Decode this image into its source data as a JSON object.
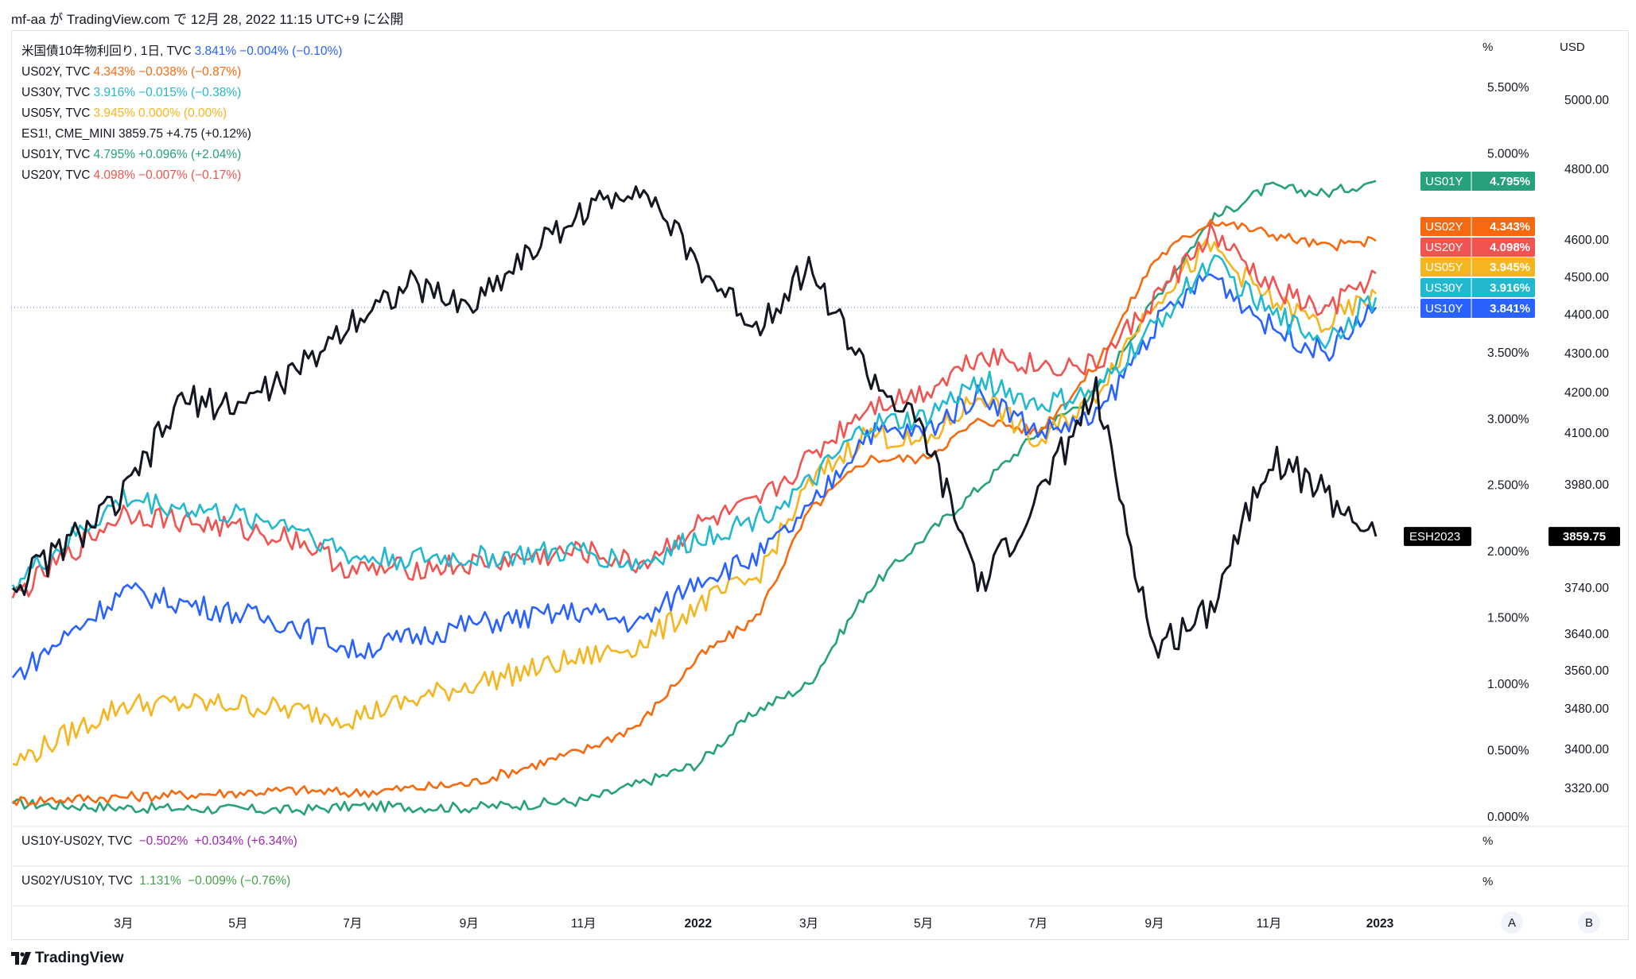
{
  "header": {
    "text": "mf-aa が TradingView.com で 12月 28, 2022 11:15 UTC+9 に公開"
  },
  "legend": [
    {
      "name": "米国債10年物利回り, 1日, TVC",
      "value": "3.841%",
      "change": "−0.004% (−0.10%)",
      "color": "#2962ff"
    },
    {
      "name": "US02Y, TVC",
      "value": "4.343%",
      "change": "−0.038% (−0.87%)",
      "color": "#f7690f"
    },
    {
      "name": "US30Y, TVC",
      "value": "3.916%",
      "change": "−0.015% (−0.38%)",
      "color": "#22b8cf"
    },
    {
      "name": "US05Y, TVC",
      "value": "3.945%",
      "change": "0.000% (0.00%)",
      "color": "#f5b51e"
    },
    {
      "name": "ES1!, CME_MINI",
      "value": "3859.75",
      "change": "+4.75 (+0.12%)",
      "color": "#131722"
    },
    {
      "name": "US01Y, TVC",
      "value": "4.795%",
      "change": "+0.096% (+2.04%)",
      "color": "#26a17b"
    },
    {
      "name": "US20Y, TVC",
      "value": "4.098%",
      "change": "−0.007% (−0.17%)",
      "color": "#f05350"
    }
  ],
  "sub_panes": [
    {
      "name": "US10Y-US02Y, TVC",
      "value": "−0.502%",
      "change": "+0.034% (+6.34%)",
      "color": "#9c27b0",
      "unit": "%"
    },
    {
      "name": "US02Y/US10Y, TVC",
      "value": "1.131%",
      "change": "−0.009% (−0.76%)",
      "color": "#43a047",
      "unit": "%"
    }
  ],
  "axes": {
    "pct_unit": "%",
    "usd_unit": "USD",
    "pct_ticks": [
      {
        "v": 5.5,
        "label": "5.500%"
      },
      {
        "v": 5.0,
        "label": "5.000%"
      },
      {
        "v": 3.5,
        "label": "3.500%"
      },
      {
        "v": 3.0,
        "label": "3.000%"
      },
      {
        "v": 2.5,
        "label": "2.500%"
      },
      {
        "v": 2.0,
        "label": "2.000%"
      },
      {
        "v": 1.5,
        "label": "1.500%"
      },
      {
        "v": 1.0,
        "label": "1.000%"
      },
      {
        "v": 0.5,
        "label": "0.500%"
      },
      {
        "v": 0.0,
        "label": "0.000%"
      }
    ],
    "usd_ticks": [
      "5000.00",
      "4800.00",
      "4600.00",
      "4500.00",
      "4400.00",
      "4300.00",
      "4200.00",
      "4100.00",
      "3980.00",
      "3740.00",
      "3640.00",
      "3560.00",
      "3480.00",
      "3400.00",
      "3320.00"
    ],
    "x_ticks": [
      {
        "label": "3月",
        "bold": false
      },
      {
        "label": "5月",
        "bold": false
      },
      {
        "label": "7月",
        "bold": false
      },
      {
        "label": "9月",
        "bold": false
      },
      {
        "label": "11月",
        "bold": false
      },
      {
        "label": "2022",
        "bold": true
      },
      {
        "label": "3月",
        "bold": false
      },
      {
        "label": "5月",
        "bold": false
      },
      {
        "label": "7月",
        "bold": false
      },
      {
        "label": "9月",
        "bold": false
      },
      {
        "label": "11月",
        "bold": false
      },
      {
        "label": "2023",
        "bold": true
      }
    ]
  },
  "price_tags": [
    {
      "name": "US01Y",
      "value": "4.795%",
      "color": "#26a17b"
    },
    {
      "name": "US02Y",
      "value": "4.343%",
      "color": "#f7690f"
    },
    {
      "name": "US20Y",
      "value": "4.098%",
      "color": "#f05350"
    },
    {
      "name": "US05Y",
      "value": "3.945%",
      "color": "#f5b51e"
    },
    {
      "name": "US30Y",
      "value": "3.916%",
      "color": "#22b8cf"
    },
    {
      "name": "US10Y",
      "value": "3.841%",
      "color": "#2962ff"
    }
  ],
  "es_tag": {
    "name": "ESH2023",
    "value": "3859.75"
  },
  "buttons": {
    "a": "A",
    "b": "B"
  },
  "footer": {
    "brand": "TradingView"
  },
  "chart_data": {
    "type": "line",
    "title": "",
    "x_range": [
      "2021-01",
      "2022-12-28"
    ],
    "y_axis_left_unit": "%",
    "y_axis_right_unit": "USD",
    "series": [
      {
        "name": "US01Y",
        "color": "#26a17b",
        "unit": "%",
        "points": [
          [
            "2021-01",
            0.1
          ],
          [
            "2021-03",
            0.07
          ],
          [
            "2021-06",
            0.05
          ],
          [
            "2021-07",
            0.08
          ],
          [
            "2021-09",
            0.07
          ],
          [
            "2021-11",
            0.12
          ],
          [
            "2021-12",
            0.25
          ],
          [
            "2022-01",
            0.4
          ],
          [
            "2022-02",
            0.8
          ],
          [
            "2022-03",
            1.0
          ],
          [
            "2022-04",
            1.7
          ],
          [
            "2022-05",
            2.1
          ],
          [
            "2022-06",
            2.5
          ],
          [
            "2022-07",
            2.9
          ],
          [
            "2022-08",
            3.2
          ],
          [
            "2022-09",
            3.9
          ],
          [
            "2022-10",
            4.5
          ],
          [
            "2022-11",
            4.75
          ],
          [
            "2022-12",
            4.7
          ],
          [
            "2022-12-28",
            4.795
          ]
        ]
      },
      {
        "name": "US02Y",
        "color": "#f7690f",
        "unit": "%",
        "points": [
          [
            "2021-01",
            0.12
          ],
          [
            "2021-03",
            0.15
          ],
          [
            "2021-06",
            0.2
          ],
          [
            "2021-07",
            0.18
          ],
          [
            "2021-09",
            0.25
          ],
          [
            "2021-11",
            0.5
          ],
          [
            "2021-12",
            0.7
          ],
          [
            "2022-01",
            1.2
          ],
          [
            "2022-02",
            1.5
          ],
          [
            "2022-03",
            2.3
          ],
          [
            "2022-04",
            2.7
          ],
          [
            "2022-05",
            2.7
          ],
          [
            "2022-06",
            3.0
          ],
          [
            "2022-07",
            2.9
          ],
          [
            "2022-08",
            3.4
          ],
          [
            "2022-09",
            4.2
          ],
          [
            "2022-10",
            4.5
          ],
          [
            "2022-11",
            4.4
          ],
          [
            "2022-12",
            4.3
          ],
          [
            "2022-12-28",
            4.343
          ]
        ]
      },
      {
        "name": "US05Y",
        "color": "#f5b51e",
        "unit": "%",
        "points": [
          [
            "2021-01",
            0.4
          ],
          [
            "2021-03",
            0.85
          ],
          [
            "2021-05",
            0.85
          ],
          [
            "2021-06",
            0.8
          ],
          [
            "2021-07",
            0.75
          ],
          [
            "2021-09",
            1.0
          ],
          [
            "2021-11",
            1.2
          ],
          [
            "2021-12",
            1.3
          ],
          [
            "2022-01",
            1.6
          ],
          [
            "2022-02",
            1.8
          ],
          [
            "2022-03",
            2.5
          ],
          [
            "2022-04",
            2.9
          ],
          [
            "2022-05",
            2.8
          ],
          [
            "2022-06",
            3.2
          ],
          [
            "2022-07",
            2.8
          ],
          [
            "2022-08",
            3.2
          ],
          [
            "2022-09",
            3.9
          ],
          [
            "2022-10",
            4.3
          ],
          [
            "2022-11",
            3.9
          ],
          [
            "2022-12",
            3.7
          ],
          [
            "2022-12-28",
            3.945
          ]
        ]
      },
      {
        "name": "US10Y",
        "color": "#2962ff",
        "unit": "%",
        "points": [
          [
            "2021-01",
            1.05
          ],
          [
            "2021-03",
            1.7
          ],
          [
            "2021-06",
            1.45
          ],
          [
            "2021-07",
            1.25
          ],
          [
            "2021-09",
            1.45
          ],
          [
            "2021-11",
            1.55
          ],
          [
            "2021-12",
            1.45
          ],
          [
            "2022-01",
            1.8
          ],
          [
            "2022-02",
            1.95
          ],
          [
            "2022-03",
            2.3
          ],
          [
            "2022-04",
            2.9
          ],
          [
            "2022-05",
            2.9
          ],
          [
            "2022-06",
            3.2
          ],
          [
            "2022-07",
            2.9
          ],
          [
            "2022-08",
            3.0
          ],
          [
            "2022-09",
            3.7
          ],
          [
            "2022-10",
            4.1
          ],
          [
            "2022-11",
            3.7
          ],
          [
            "2022-12",
            3.5
          ],
          [
            "2022-12-28",
            3.841
          ]
        ]
      },
      {
        "name": "US20Y",
        "color": "#f05350",
        "unit": "%",
        "points": [
          [
            "2021-01",
            1.65
          ],
          [
            "2021-03",
            2.3
          ],
          [
            "2021-06",
            2.1
          ],
          [
            "2021-07",
            1.85
          ],
          [
            "2021-09",
            1.9
          ],
          [
            "2021-11",
            2.0
          ],
          [
            "2021-12",
            1.9
          ],
          [
            "2022-01",
            2.2
          ],
          [
            "2022-02",
            2.35
          ],
          [
            "2022-03",
            2.7
          ],
          [
            "2022-04",
            3.1
          ],
          [
            "2022-05",
            3.2
          ],
          [
            "2022-06",
            3.5
          ],
          [
            "2022-07",
            3.4
          ],
          [
            "2022-08",
            3.4
          ],
          [
            "2022-09",
            3.9
          ],
          [
            "2022-10",
            4.4
          ],
          [
            "2022-11",
            4.0
          ],
          [
            "2022-12",
            3.8
          ],
          [
            "2022-12-28",
            4.098
          ]
        ]
      },
      {
        "name": "US30Y",
        "color": "#22b8cf",
        "unit": "%",
        "points": [
          [
            "2021-01",
            1.75
          ],
          [
            "2021-03",
            2.4
          ],
          [
            "2021-06",
            2.2
          ],
          [
            "2021-07",
            1.95
          ],
          [
            "2021-09",
            1.95
          ],
          [
            "2021-11",
            2.0
          ],
          [
            "2021-12",
            1.9
          ],
          [
            "2022-01",
            2.1
          ],
          [
            "2022-02",
            2.25
          ],
          [
            "2022-03",
            2.5
          ],
          [
            "2022-04",
            2.95
          ],
          [
            "2022-05",
            3.0
          ],
          [
            "2022-06",
            3.3
          ],
          [
            "2022-07",
            3.1
          ],
          [
            "2022-08",
            3.2
          ],
          [
            "2022-09",
            3.7
          ],
          [
            "2022-10",
            4.2
          ],
          [
            "2022-11",
            3.8
          ],
          [
            "2022-12",
            3.6
          ],
          [
            "2022-12-28",
            3.916
          ]
        ]
      },
      {
        "name": "ES1!",
        "color": "#131722",
        "unit": "USD",
        "points": [
          [
            "2021-01",
            3740
          ],
          [
            "2021-02",
            3850
          ],
          [
            "2021-03",
            3950
          ],
          [
            "2021-04",
            4180
          ],
          [
            "2021-05",
            4170
          ],
          [
            "2021-06",
            4250
          ],
          [
            "2021-07",
            4390
          ],
          [
            "2021-08",
            4480
          ],
          [
            "2021-09",
            4420
          ],
          [
            "2021-10",
            4560
          ],
          [
            "2021-11",
            4680
          ],
          [
            "2021-12",
            4760
          ],
          [
            "2022-01",
            4530
          ],
          [
            "2022-02",
            4370
          ],
          [
            "2022-03",
            4530
          ],
          [
            "2022-04",
            4250
          ],
          [
            "2022-05",
            4100
          ],
          [
            "2022-06",
            3740
          ],
          [
            "2022-07",
            3950
          ],
          [
            "2022-08",
            4200
          ],
          [
            "2022-09",
            3600
          ],
          [
            "2022-10",
            3700
          ],
          [
            "2022-11",
            4050
          ],
          [
            "2022-12",
            3960
          ],
          [
            "2022-12-28",
            3859.75
          ]
        ]
      }
    ]
  }
}
